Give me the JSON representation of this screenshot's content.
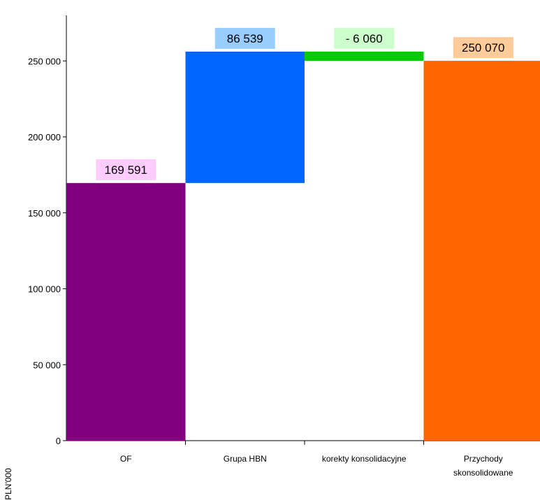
{
  "chart_data": {
    "type": "bar",
    "subtype": "waterfall",
    "categories": [
      "OF",
      "Grupa HBN",
      "korekty konsolidacyjne",
      "Przychody skonsolidowane"
    ],
    "category_lines": [
      [
        "OF"
      ],
      [
        "Grupa HBN"
      ],
      [
        "korekty konsolidacyjne"
      ],
      [
        "Przychody",
        "skonsolidowane"
      ]
    ],
    "values": [
      169591,
      86539,
      -6060,
      250070
    ],
    "bar_ranges": [
      [
        0,
        169591
      ],
      [
        169591,
        256130
      ],
      [
        250070,
        256130
      ],
      [
        0,
        250070
      ]
    ],
    "data_labels": [
      "169 591",
      "86 539",
      "-  6 060",
      "250 070"
    ],
    "colors": [
      "#800080",
      "#0066ff",
      "#00cc00",
      "#ff6600"
    ],
    "label_backgrounds": [
      "#ffccff",
      "#99ccff",
      "#ccffcc",
      "#ffcc99"
    ],
    "ylabel": "PLN'000",
    "ylim": [
      0,
      280000
    ],
    "yticks": [
      0,
      50000,
      100000,
      150000,
      200000,
      250000
    ],
    "ytick_labels": [
      "0",
      "50 000",
      "100 000",
      "150 000",
      "200 000",
      "250 000"
    ],
    "grid": false,
    "legend": "none"
  }
}
